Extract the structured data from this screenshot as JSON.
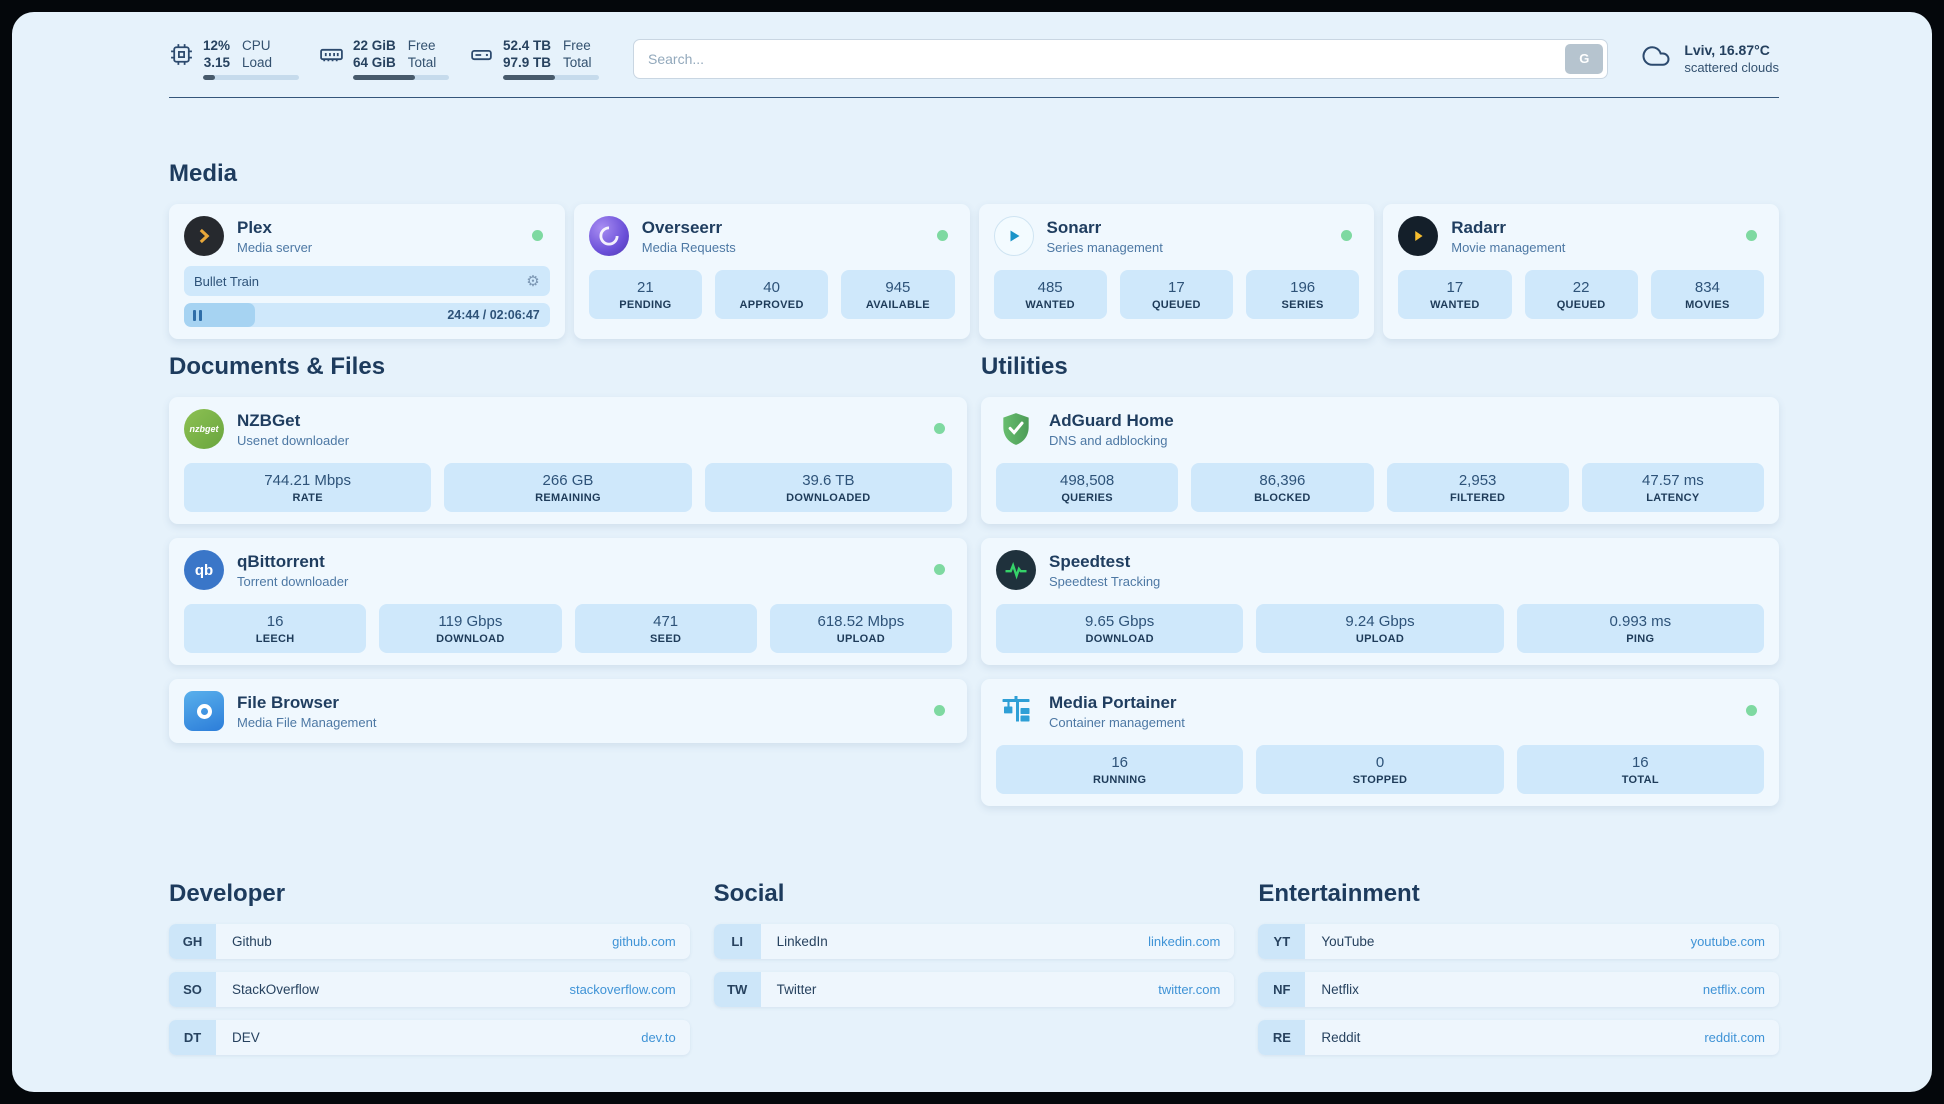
{
  "topbar": {
    "cpu": {
      "values": [
        "12%",
        "3.15"
      ],
      "labels": [
        "CPU",
        "Load"
      ],
      "percent": 12
    },
    "memory": {
      "values": [
        "22 GiB",
        "64 GiB"
      ],
      "labels": [
        "Free",
        "Total"
      ],
      "percent": 65
    },
    "disk": {
      "values": [
        "52.4 TB",
        "97.9 TB"
      ],
      "labels": [
        "Free",
        "Total"
      ],
      "percent": 54
    },
    "search": {
      "placeholder": "Search...",
      "button_label": "G"
    },
    "weather": {
      "location": "Lviv, 16.87°C",
      "condition": "scattered clouds"
    }
  },
  "sections": {
    "media": "Media",
    "documents": "Documents & Files",
    "utilities": "Utilities"
  },
  "services": {
    "plex": {
      "name": "Plex",
      "subtitle": "Media server",
      "status": "online",
      "now_playing": "Bullet Train",
      "time": "24:44 / 02:06:47",
      "progress_percent": 19.5
    },
    "overseerr": {
      "name": "Overseerr",
      "subtitle": "Media Requests",
      "status": "online",
      "stats": [
        {
          "value": "21",
          "label": "PENDING"
        },
        {
          "value": "40",
          "label": "APPROVED"
        },
        {
          "value": "945",
          "label": "AVAILABLE"
        }
      ]
    },
    "sonarr": {
      "name": "Sonarr",
      "subtitle": "Series management",
      "status": "online",
      "stats": [
        {
          "value": "485",
          "label": "WANTED"
        },
        {
          "value": "17",
          "label": "QUEUED"
        },
        {
          "value": "196",
          "label": "SERIES"
        }
      ]
    },
    "radarr": {
      "name": "Radarr",
      "subtitle": "Movie management",
      "status": "online",
      "stats": [
        {
          "value": "17",
          "label": "WANTED"
        },
        {
          "value": "22",
          "label": "QUEUED"
        },
        {
          "value": "834",
          "label": "MOVIES"
        }
      ]
    },
    "nzbget": {
      "name": "NZBGet",
      "subtitle": "Usenet downloader",
      "status": "online",
      "icon_text": "nzbget",
      "stats": [
        {
          "value": "744.21 Mbps",
          "label": "RATE"
        },
        {
          "value": "266 GB",
          "label": "REMAINING"
        },
        {
          "value": "39.6 TB",
          "label": "DOWNLOADED"
        }
      ]
    },
    "qbittorrent": {
      "name": "qBittorrent",
      "subtitle": "Torrent downloader",
      "status": "online",
      "icon_text": "qb",
      "stats": [
        {
          "value": "16",
          "label": "LEECH"
        },
        {
          "value": "119 Gbps",
          "label": "DOWNLOAD"
        },
        {
          "value": "471",
          "label": "SEED"
        },
        {
          "value": "618.52 Mbps",
          "label": "UPLOAD"
        }
      ]
    },
    "filebrowser": {
      "name": "File Browser",
      "subtitle": "Media File Management",
      "status": "online"
    },
    "adguard": {
      "name": "AdGuard Home",
      "subtitle": "DNS and adblocking",
      "stats": [
        {
          "value": "498,508",
          "label": "QUERIES"
        },
        {
          "value": "86,396",
          "label": "BLOCKED"
        },
        {
          "value": "2,953",
          "label": "FILTERED"
        },
        {
          "value": "47.57 ms",
          "label": "LATENCY"
        }
      ]
    },
    "speedtest": {
      "name": "Speedtest",
      "subtitle": "Speedtest Tracking",
      "stats": [
        {
          "value": "9.65 Gbps",
          "label": "DOWNLOAD"
        },
        {
          "value": "9.24 Gbps",
          "label": "UPLOAD"
        },
        {
          "value": "0.993 ms",
          "label": "PING"
        }
      ]
    },
    "portainer": {
      "name": "Media Portainer",
      "subtitle": "Container management",
      "status": "online",
      "stats": [
        {
          "value": "16",
          "label": "RUNNING"
        },
        {
          "value": "0",
          "label": "STOPPED"
        },
        {
          "value": "16",
          "label": "TOTAL"
        }
      ]
    }
  },
  "bookmarks": {
    "developer": {
      "title": "Developer",
      "items": [
        {
          "abbr": "GH",
          "name": "Github",
          "link": "github.com"
        },
        {
          "abbr": "SO",
          "name": "StackOverflow",
          "link": "stackoverflow.com"
        },
        {
          "abbr": "DT",
          "name": "DEV",
          "link": "dev.to"
        }
      ]
    },
    "social": {
      "title": "Social",
      "items": [
        {
          "abbr": "LI",
          "name": "LinkedIn",
          "link": "linkedin.com"
        },
        {
          "abbr": "TW",
          "name": "Twitter",
          "link": "twitter.com"
        }
      ]
    },
    "entertainment": {
      "title": "Entertainment",
      "items": [
        {
          "abbr": "YT",
          "name": "YouTube",
          "link": "youtube.com"
        },
        {
          "abbr": "NF",
          "name": "Netflix",
          "link": "netflix.com"
        },
        {
          "abbr": "RE",
          "name": "Reddit",
          "link": "reddit.com"
        }
      ]
    }
  },
  "icons": {
    "cpu": "cpu-chip-icon",
    "memory": "ram-icon",
    "disk": "hard-drive-icon",
    "weather": "cloud-icon",
    "settings": "gear-icon",
    "pause": "pause-icon",
    "status": "status-dot"
  },
  "colors": {
    "page_bg": "#e6f2fb",
    "card_bg": "#f0f8fe",
    "tile_bg": "#cfe8fb",
    "text_dark": "#1f3d5f",
    "link": "#3f93d6",
    "status_online": "#7ed9a1"
  }
}
